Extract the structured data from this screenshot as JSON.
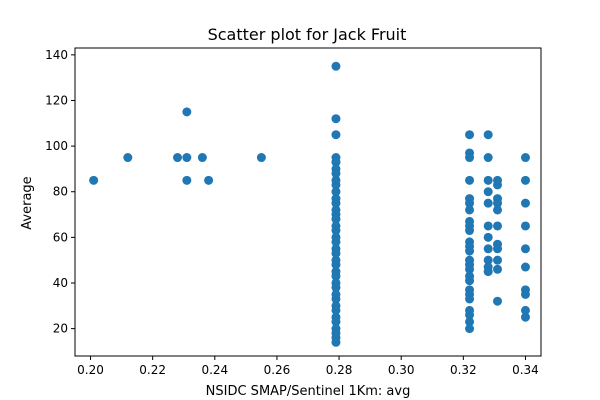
{
  "chart_data": {
    "type": "scatter",
    "title": "Scatter plot for Jack Fruit",
    "xlabel": "NSIDC SMAP/Sentinel 1Km: avg",
    "ylabel": "Average",
    "xlim": [
      0.195,
      0.345
    ],
    "ylim": [
      8,
      143
    ],
    "xticks": [
      0.2,
      0.22,
      0.24,
      0.26,
      0.28,
      0.3,
      0.32,
      0.34
    ],
    "xtick_labels": [
      "0.20",
      "0.22",
      "0.24",
      "0.26",
      "0.28",
      "0.30",
      "0.32",
      "0.34"
    ],
    "yticks": [
      20,
      40,
      60,
      80,
      100,
      120,
      140
    ],
    "ytick_labels": [
      "20",
      "40",
      "60",
      "80",
      "100",
      "120",
      "140"
    ],
    "grid": false,
    "legend": "none",
    "marker_color": "#1f77b4",
    "points": [
      [
        0.201,
        85
      ],
      [
        0.212,
        95
      ],
      [
        0.228,
        95
      ],
      [
        0.231,
        95
      ],
      [
        0.231,
        115
      ],
      [
        0.231,
        85
      ],
      [
        0.236,
        95
      ],
      [
        0.238,
        85
      ],
      [
        0.255,
        95
      ],
      [
        0.279,
        135
      ],
      [
        0.279,
        112
      ],
      [
        0.279,
        105
      ],
      [
        0.279,
        95
      ],
      [
        0.279,
        93
      ],
      [
        0.279,
        90
      ],
      [
        0.279,
        88
      ],
      [
        0.279,
        85
      ],
      [
        0.279,
        83
      ],
      [
        0.279,
        80
      ],
      [
        0.279,
        77
      ],
      [
        0.279,
        75
      ],
      [
        0.279,
        72
      ],
      [
        0.279,
        70
      ],
      [
        0.279,
        68
      ],
      [
        0.279,
        65
      ],
      [
        0.279,
        63
      ],
      [
        0.279,
        60
      ],
      [
        0.279,
        58
      ],
      [
        0.279,
        55
      ],
      [
        0.279,
        53
      ],
      [
        0.279,
        50
      ],
      [
        0.279,
        48
      ],
      [
        0.279,
        45
      ],
      [
        0.279,
        43
      ],
      [
        0.279,
        40
      ],
      [
        0.279,
        38
      ],
      [
        0.279,
        35
      ],
      [
        0.279,
        33
      ],
      [
        0.279,
        30
      ],
      [
        0.279,
        28
      ],
      [
        0.279,
        25
      ],
      [
        0.279,
        23
      ],
      [
        0.279,
        20
      ],
      [
        0.279,
        18
      ],
      [
        0.279,
        16
      ],
      [
        0.279,
        14
      ],
      [
        0.322,
        105
      ],
      [
        0.322,
        97
      ],
      [
        0.322,
        95
      ],
      [
        0.322,
        85
      ],
      [
        0.322,
        77
      ],
      [
        0.322,
        75
      ],
      [
        0.322,
        72
      ],
      [
        0.322,
        67
      ],
      [
        0.322,
        65
      ],
      [
        0.322,
        63
      ],
      [
        0.322,
        58
      ],
      [
        0.322,
        56
      ],
      [
        0.322,
        54
      ],
      [
        0.322,
        50
      ],
      [
        0.322,
        48
      ],
      [
        0.322,
        46
      ],
      [
        0.322,
        43
      ],
      [
        0.322,
        41
      ],
      [
        0.322,
        37
      ],
      [
        0.322,
        35
      ],
      [
        0.322,
        33
      ],
      [
        0.322,
        28
      ],
      [
        0.322,
        26
      ],
      [
        0.322,
        23
      ],
      [
        0.322,
        20
      ],
      [
        0.328,
        105
      ],
      [
        0.328,
        95
      ],
      [
        0.328,
        85
      ],
      [
        0.328,
        80
      ],
      [
        0.328,
        75
      ],
      [
        0.328,
        65
      ],
      [
        0.328,
        60
      ],
      [
        0.328,
        55
      ],
      [
        0.328,
        50
      ],
      [
        0.328,
        47
      ],
      [
        0.328,
        45
      ],
      [
        0.331,
        85
      ],
      [
        0.331,
        83
      ],
      [
        0.331,
        77
      ],
      [
        0.331,
        75
      ],
      [
        0.331,
        72
      ],
      [
        0.331,
        65
      ],
      [
        0.331,
        57
      ],
      [
        0.331,
        55
      ],
      [
        0.331,
        50
      ],
      [
        0.331,
        46
      ],
      [
        0.331,
        32
      ],
      [
        0.34,
        95
      ],
      [
        0.34,
        85
      ],
      [
        0.34,
        75
      ],
      [
        0.34,
        65
      ],
      [
        0.34,
        55
      ],
      [
        0.34,
        47
      ],
      [
        0.34,
        37
      ],
      [
        0.34,
        35
      ],
      [
        0.34,
        28
      ],
      [
        0.34,
        25
      ]
    ]
  }
}
